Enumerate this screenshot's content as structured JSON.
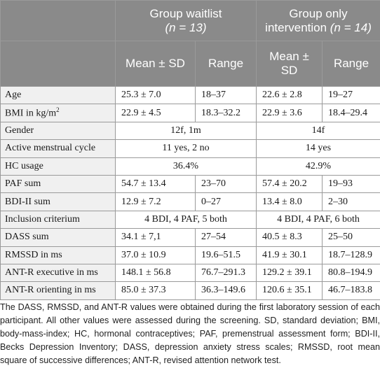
{
  "header": {
    "group1_title": "Group waitlist",
    "group1_n": "(n = 13)",
    "group2_title_line1": "Group only",
    "group2_title_line2": "intervention",
    "group2_n": "(n = 14)",
    "col_mean_sd": "Mean ± SD",
    "col_range": "Range"
  },
  "rows": [
    {
      "label": "Age",
      "g1_mean": "25.3 ± 7.0",
      "g1_range": "18–37",
      "g2_mean": "22.6 ± 2.8",
      "g2_range": "19–27"
    },
    {
      "label": "BMI in kg/m",
      "label_sup": "2",
      "g1_mean": "22.9 ± 4.5",
      "g1_range": "18.3–32.2",
      "g2_mean": "22.9 ± 3.6",
      "g2_range": "18.4–29.4"
    },
    {
      "label": "Gender",
      "g1_merged": "12f, 1m",
      "g2_merged": "14f"
    },
    {
      "label": "Active menstrual cycle",
      "g1_merged": "11 yes, 2 no",
      "g2_merged": "14 yes"
    },
    {
      "label": "HC usage",
      "g1_merged": "36.4%",
      "g2_merged": "42.9%"
    },
    {
      "label": "PAF sum",
      "g1_mean": "54.7 ± 13.4",
      "g1_range": "23–70",
      "g2_mean": "57.4 ± 20.2",
      "g2_range": "19–93"
    },
    {
      "label": "BDI-II sum",
      "g1_mean": "12.9 ± 7.2",
      "g1_range": "0–27",
      "g2_mean": "13.4 ± 8.0",
      "g2_range": "2–30"
    },
    {
      "label": "Inclusion criterium",
      "g1_merged": "4 BDI, 4 PAF, 5 both",
      "g2_merged": "4 BDI, 4 PAF, 6 both"
    },
    {
      "label": "DASS sum",
      "g1_mean": "34.1 ± 7,1",
      "g1_range": "27–54",
      "g2_mean": "40.5 ± 8.3",
      "g2_range": "25–50"
    },
    {
      "label": "RMSSD in ms",
      "g1_mean": "37.0 ± 10.9",
      "g1_range": "19.6–51.5",
      "g2_mean": "41.9 ± 30.1",
      "g2_range": "18.7–128.9"
    },
    {
      "label": "ANT-R executive in ms",
      "g1_mean": "148.1 ± 56.8",
      "g1_range": "76.7–291.3",
      "g2_mean": "129.2 ± 39.1",
      "g2_range": "80.8–194.9"
    },
    {
      "label": "ANT-R orienting in ms",
      "g1_mean": "85.0 ± 37.3",
      "g1_range": "36.3–149.6",
      "g2_mean": "120.6 ± 35.1",
      "g2_range": "46.7–183.8"
    }
  ],
  "footnote": {
    "text": "The DASS, RMSSD, and ANT-R values were obtained during the first laboratory session of each participant. All other values were assessed during the screening. SD, standard deviation; BMI, body-mass-index; HC, hormonal contraceptives; PAF, premenstrual assessment form; BDI-II, Becks Depression Inventory; DASS, depression anxiety stress scales; RMSSD, root mean square of successive differences; ANT-R, revised attention network test."
  }
}
